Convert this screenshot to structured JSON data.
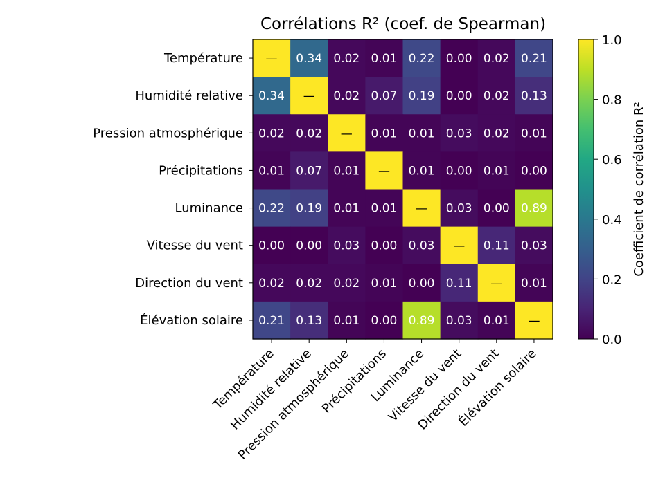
{
  "chart_data": {
    "type": "heatmap",
    "title": "Corrélations R² (coef. de Spearman)",
    "rows": [
      "Température",
      "Humidité relative",
      "Pression atmosphérique",
      "Précipitations",
      "Luminance",
      "Vitesse du vent",
      "Direction du vent",
      "Élévation solaire"
    ],
    "cols": [
      "Température",
      "Humidité relative",
      "Pression atmosphérique",
      "Précipitations",
      "Luminance",
      "Vitesse du vent",
      "Direction du vent",
      "Élévation solaire"
    ],
    "values": [
      [
        1.0,
        0.34,
        0.02,
        0.01,
        0.22,
        0.0,
        0.02,
        0.21
      ],
      [
        0.34,
        1.0,
        0.02,
        0.07,
        0.19,
        0.0,
        0.02,
        0.13
      ],
      [
        0.02,
        0.02,
        1.0,
        0.01,
        0.01,
        0.03,
        0.02,
        0.01
      ],
      [
        0.01,
        0.07,
        0.01,
        1.0,
        0.01,
        0.0,
        0.01,
        0.0
      ],
      [
        0.22,
        0.19,
        0.01,
        0.01,
        1.0,
        0.03,
        0.0,
        0.89
      ],
      [
        0.0,
        0.0,
        0.03,
        0.0,
        0.03,
        1.0,
        0.11,
        0.03
      ],
      [
        0.02,
        0.02,
        0.02,
        0.01,
        0.0,
        0.11,
        1.0,
        0.01
      ],
      [
        0.21,
        0.13,
        0.01,
        0.0,
        0.89,
        0.03,
        0.01,
        1.0
      ]
    ],
    "diagonal_label": "—",
    "colorscale": "viridis",
    "vmin": 0.0,
    "vmax": 1.0,
    "colorbar": {
      "label": "Coefficient de corrélation R²",
      "ticks": [
        "0.0",
        "0.2",
        "0.4",
        "0.6",
        "0.8",
        "1.0"
      ]
    }
  }
}
